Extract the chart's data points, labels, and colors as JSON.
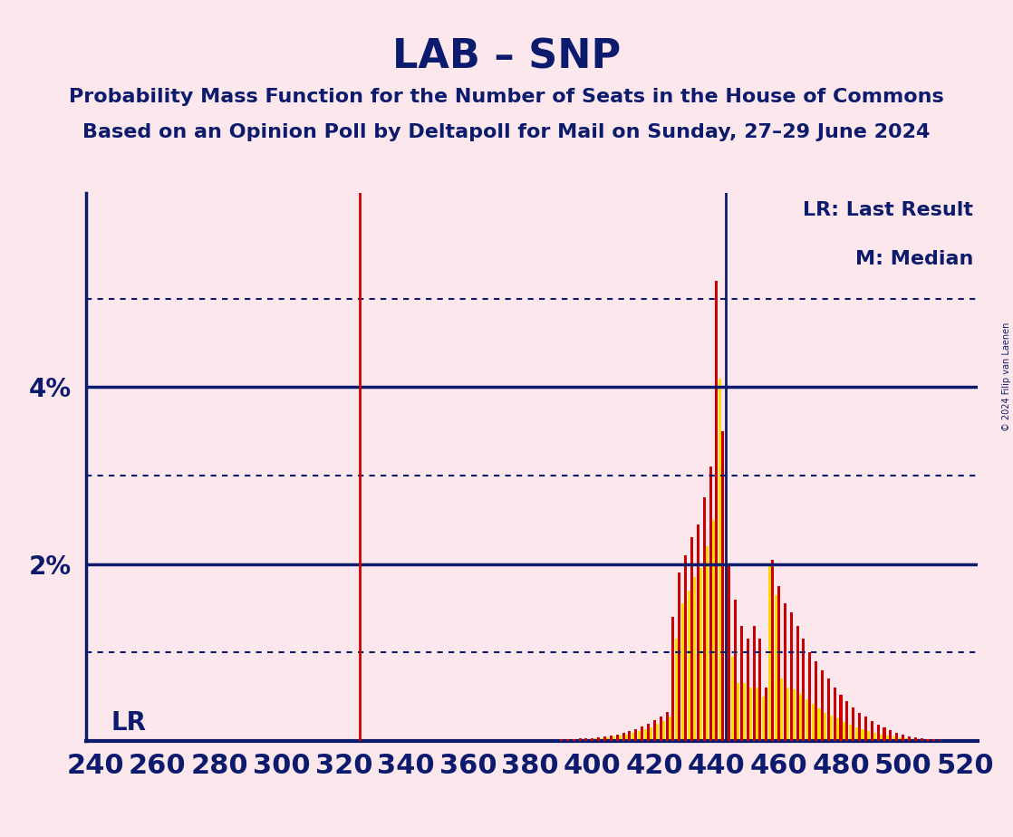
{
  "title": "LAB – SNP",
  "subtitle1": "Probability Mass Function for the Number of Seats in the House of Commons",
  "subtitle2": "Based on an Opinion Poll by Deltapoll for Mail on Sunday, 27–29 June 2024",
  "copyright": "© 2024 Filip van Laenen",
  "legend1": "LR: Last Result",
  "legend2": "M: Median",
  "lr_label": "LR",
  "lr_line": 325,
  "median_line": 443,
  "xmin": 237,
  "xmax": 524,
  "ymin": 0.0,
  "ymax": 0.062,
  "ylabel_ticks": [
    0.02,
    0.04
  ],
  "dotted_ticks": [
    0.01,
    0.03,
    0.05
  ],
  "background_color": "#fce8ec",
  "bar_color_red": "#cc0000",
  "bar_color_yellow": "#ffdd00",
  "axis_color": "#0d1b6e",
  "title_color": "#0d1b6e",
  "title_fontsize": 32,
  "subtitle_fontsize": 16,
  "ylabel_fontsize": 20,
  "xlabel_fontsize": 22,
  "legend_fontsize": 16,
  "bars": {
    "390": [
      "red",
      0.0002
    ],
    "391": [
      "yellow",
      0.0001
    ],
    "392": [
      "red",
      0.0002
    ],
    "393": [
      "yellow",
      0.0001
    ],
    "394": [
      "red",
      0.0002
    ],
    "395": [
      "yellow",
      0.0002
    ],
    "396": [
      "red",
      0.0003
    ],
    "397": [
      "yellow",
      0.0002
    ],
    "398": [
      "red",
      0.0003
    ],
    "399": [
      "yellow",
      0.0002
    ],
    "400": [
      "red",
      0.0003
    ],
    "401": [
      "yellow",
      0.0003
    ],
    "402": [
      "red",
      0.0004
    ],
    "403": [
      "yellow",
      0.0003
    ],
    "404": [
      "red",
      0.0005
    ],
    "405": [
      "yellow",
      0.0004
    ],
    "406": [
      "red",
      0.0006
    ],
    "407": [
      "yellow",
      0.0005
    ],
    "408": [
      "red",
      0.0007
    ],
    "409": [
      "yellow",
      0.0006
    ],
    "410": [
      "red",
      0.0009
    ],
    "411": [
      "yellow",
      0.0007
    ],
    "412": [
      "red",
      0.0011
    ],
    "413": [
      "yellow",
      0.0009
    ],
    "414": [
      "red",
      0.0013
    ],
    "415": [
      "yellow",
      0.0011
    ],
    "416": [
      "red",
      0.0016
    ],
    "417": [
      "yellow",
      0.0013
    ],
    "418": [
      "red",
      0.0019
    ],
    "419": [
      "yellow",
      0.0015
    ],
    "420": [
      "red",
      0.0023
    ],
    "421": [
      "yellow",
      0.0019
    ],
    "422": [
      "red",
      0.0027
    ],
    "423": [
      "yellow",
      0.0022
    ],
    "424": [
      "red",
      0.0033
    ],
    "425": [
      "yellow",
      0.0027
    ],
    "426": [
      "red",
      0.014
    ],
    "427": [
      "yellow",
      0.0115
    ],
    "428": [
      "red",
      0.019
    ],
    "429": [
      "yellow",
      0.0155
    ],
    "430": [
      "red",
      0.021
    ],
    "431": [
      "yellow",
      0.017
    ],
    "432": [
      "red",
      0.023
    ],
    "433": [
      "yellow",
      0.0185
    ],
    "434": [
      "red",
      0.0245
    ],
    "435": [
      "yellow",
      0.0195
    ],
    "436": [
      "red",
      0.0275
    ],
    "437": [
      "yellow",
      0.022
    ],
    "438": [
      "red",
      0.031
    ],
    "439": [
      "yellow",
      0.025
    ],
    "440": [
      "red",
      0.052
    ],
    "441": [
      "yellow",
      0.041
    ],
    "442": [
      "red",
      0.035
    ],
    "443": [
      "yellow",
      0.0285
    ],
    "444": [
      "red",
      0.02
    ],
    "445": [
      "yellow",
      0.0095
    ],
    "446": [
      "red",
      0.016
    ],
    "447": [
      "yellow",
      0.0065
    ],
    "448": [
      "red",
      0.013
    ],
    "449": [
      "yellow",
      0.0065
    ],
    "450": [
      "red",
      0.0115
    ],
    "451": [
      "yellow",
      0.006
    ],
    "452": [
      "red",
      0.013
    ],
    "453": [
      "yellow",
      0.006
    ],
    "454": [
      "red",
      0.0115
    ],
    "455": [
      "yellow",
      0.005
    ],
    "456": [
      "red",
      0.006
    ],
    "457": [
      "yellow",
      0.02
    ],
    "458": [
      "red",
      0.0205
    ],
    "459": [
      "yellow",
      0.0165
    ],
    "460": [
      "red",
      0.0175
    ],
    "461": [
      "yellow",
      0.007
    ],
    "462": [
      "red",
      0.0155
    ],
    "463": [
      "yellow",
      0.006
    ],
    "464": [
      "red",
      0.0145
    ],
    "465": [
      "yellow",
      0.0058
    ],
    "466": [
      "red",
      0.013
    ],
    "467": [
      "yellow",
      0.0053
    ],
    "468": [
      "red",
      0.0115
    ],
    "469": [
      "yellow",
      0.0047
    ],
    "470": [
      "red",
      0.01
    ],
    "471": [
      "yellow",
      0.0042
    ],
    "472": [
      "red",
      0.009
    ],
    "473": [
      "yellow",
      0.0037
    ],
    "474": [
      "red",
      0.008
    ],
    "475": [
      "yellow",
      0.0032
    ],
    "476": [
      "red",
      0.007
    ],
    "477": [
      "yellow",
      0.0028
    ],
    "478": [
      "red",
      0.006
    ],
    "479": [
      "yellow",
      0.0025
    ],
    "480": [
      "red",
      0.0052
    ],
    "481": [
      "yellow",
      0.0021
    ],
    "482": [
      "red",
      0.0045
    ],
    "483": [
      "yellow",
      0.0018
    ],
    "484": [
      "red",
      0.0038
    ],
    "485": [
      "yellow",
      0.0015
    ],
    "486": [
      "red",
      0.0032
    ],
    "487": [
      "yellow",
      0.0013
    ],
    "488": [
      "red",
      0.0027
    ],
    "489": [
      "yellow",
      0.0011
    ],
    "490": [
      "red",
      0.0022
    ],
    "491": [
      "yellow",
      0.0009
    ],
    "492": [
      "red",
      0.0018
    ],
    "493": [
      "yellow",
      0.0007
    ],
    "494": [
      "red",
      0.0015
    ],
    "495": [
      "yellow",
      0.0006
    ],
    "496": [
      "red",
      0.0012
    ],
    "497": [
      "yellow",
      0.0005
    ],
    "498": [
      "red",
      0.0009
    ],
    "499": [
      "yellow",
      0.0004
    ],
    "500": [
      "red",
      0.0007
    ],
    "501": [
      "yellow",
      0.0003
    ],
    "502": [
      "red",
      0.0005
    ],
    "503": [
      "yellow",
      0.0002
    ],
    "504": [
      "red",
      0.0004
    ],
    "505": [
      "yellow",
      0.0002
    ],
    "506": [
      "red",
      0.0003
    ],
    "507": [
      "yellow",
      0.0002
    ],
    "508": [
      "red",
      0.0002
    ],
    "509": [
      "yellow",
      0.0001
    ],
    "510": [
      "red",
      0.0002
    ],
    "511": [
      "yellow",
      0.0001
    ],
    "512": [
      "red",
      0.0001
    ],
    "513": [
      "yellow",
      0.0001
    ]
  }
}
